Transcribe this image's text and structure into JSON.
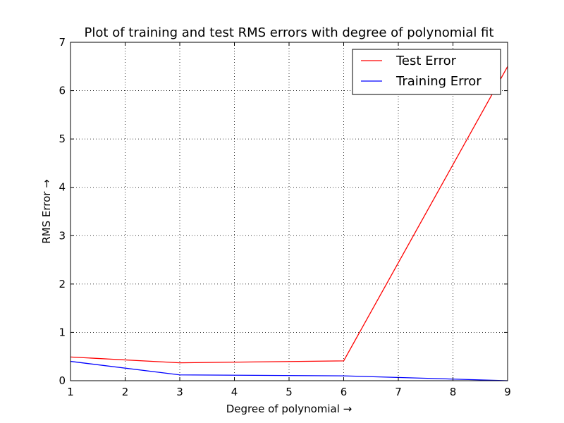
{
  "chart_data": {
    "type": "line",
    "title": "Plot of training and test RMS errors with degree of polynomial fit",
    "xlabel": "Degree of polynomial →",
    "ylabel": "RMS Error →",
    "xlim": [
      1,
      9
    ],
    "ylim": [
      0,
      7
    ],
    "x_ticks": [
      1,
      2,
      3,
      4,
      5,
      6,
      7,
      8,
      9
    ],
    "y_ticks": [
      0,
      1,
      2,
      3,
      4,
      5,
      6,
      7
    ],
    "grid": true,
    "legend_position": "top-right",
    "series": [
      {
        "name": "Test Error",
        "color": "#ff0000",
        "x": [
          1,
          3,
          6,
          9
        ],
        "y": [
          0.49,
          0.37,
          0.41,
          6.5
        ]
      },
      {
        "name": "Training Error",
        "color": "#0000ff",
        "x": [
          1,
          3,
          6,
          9
        ],
        "y": [
          0.4,
          0.12,
          0.1,
          0.0
        ]
      }
    ]
  }
}
